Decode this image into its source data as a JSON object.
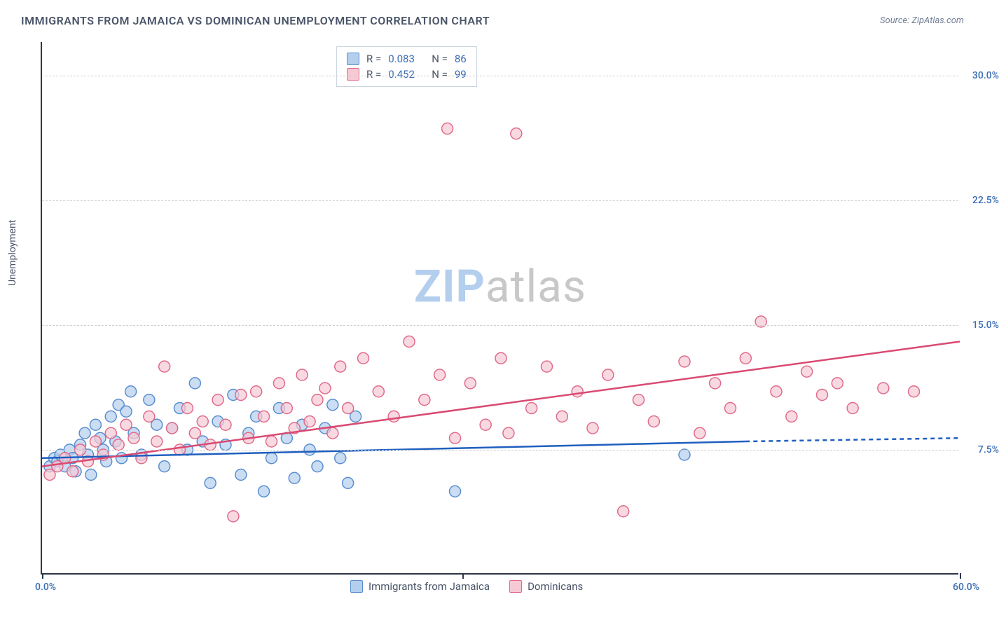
{
  "header": {
    "title": "IMMIGRANTS FROM JAMAICA VS DOMINICAN UNEMPLOYMENT CORRELATION CHART",
    "source": "Source: ZipAtlas.com"
  },
  "chart": {
    "type": "scatter",
    "ylabel": "Unemployment",
    "xlim": [
      0,
      60
    ],
    "ylim": [
      0,
      32
    ],
    "xticks": [
      {
        "value": 0,
        "label": "0.0%"
      },
      {
        "value": 60,
        "label": "60.0%"
      }
    ],
    "yticks": [
      {
        "value": 7.5,
        "label": "7.5%"
      },
      {
        "value": 15.0,
        "label": "15.0%"
      },
      {
        "value": 22.5,
        "label": "22.5%"
      },
      {
        "value": 30.0,
        "label": "30.0%"
      }
    ],
    "xtick_markers": [
      0,
      27.5,
      60
    ],
    "grid_color": "#d0d0d0",
    "background_color": "#ffffff",
    "axis_color": "#2d3748",
    "tick_label_color": "#3b6db5",
    "marker_radius": 8,
    "marker_stroke_width": 1.5,
    "trend_line_width": 2.5,
    "series": [
      {
        "name": "Immigrants from Jamaica",
        "fill": "#b4cfee",
        "stroke": "#5a8ed0",
        "line_color": "#1f5fbf",
        "r_value": "0.083",
        "n_value": "86",
        "trend": {
          "x1": 0,
          "y1": 7.0,
          "x2": 46,
          "y2": 8.0,
          "dashed_x2": 60,
          "dashed_y2": 8.2
        },
        "points": [
          [
            0.5,
            6.5
          ],
          [
            0.8,
            7.0
          ],
          [
            1.0,
            6.8
          ],
          [
            1.2,
            7.2
          ],
          [
            1.5,
            6.5
          ],
          [
            1.8,
            7.5
          ],
          [
            2.0,
            7.0
          ],
          [
            2.2,
            6.2
          ],
          [
            2.5,
            7.8
          ],
          [
            2.8,
            8.5
          ],
          [
            3.0,
            7.2
          ],
          [
            3.2,
            6.0
          ],
          [
            3.5,
            9.0
          ],
          [
            3.8,
            8.2
          ],
          [
            4.0,
            7.5
          ],
          [
            4.2,
            6.8
          ],
          [
            4.5,
            9.5
          ],
          [
            4.8,
            8.0
          ],
          [
            5.0,
            10.2
          ],
          [
            5.2,
            7.0
          ],
          [
            5.5,
            9.8
          ],
          [
            5.8,
            11.0
          ],
          [
            6.0,
            8.5
          ],
          [
            6.5,
            7.2
          ],
          [
            7.0,
            10.5
          ],
          [
            7.5,
            9.0
          ],
          [
            8.0,
            6.5
          ],
          [
            8.5,
            8.8
          ],
          [
            9.0,
            10.0
          ],
          [
            9.5,
            7.5
          ],
          [
            10.0,
            11.5
          ],
          [
            10.5,
            8.0
          ],
          [
            11.0,
            5.5
          ],
          [
            11.5,
            9.2
          ],
          [
            12.0,
            7.8
          ],
          [
            12.5,
            10.8
          ],
          [
            13.0,
            6.0
          ],
          [
            13.5,
            8.5
          ],
          [
            14.0,
            9.5
          ],
          [
            14.5,
            5.0
          ],
          [
            15.0,
            7.0
          ],
          [
            15.5,
            10.0
          ],
          [
            16.0,
            8.2
          ],
          [
            16.5,
            5.8
          ],
          [
            17.0,
            9.0
          ],
          [
            17.5,
            7.5
          ],
          [
            18.0,
            6.5
          ],
          [
            18.5,
            8.8
          ],
          [
            19.0,
            10.2
          ],
          [
            19.5,
            7.0
          ],
          [
            20.0,
            5.5
          ],
          [
            20.5,
            9.5
          ],
          [
            27.0,
            5.0
          ],
          [
            42.0,
            7.2
          ]
        ]
      },
      {
        "name": "Dominicans",
        "fill": "#f7c9d4",
        "stroke": "#e06a8a",
        "line_color": "#d94a72",
        "r_value": "0.452",
        "n_value": "99",
        "trend": {
          "x1": 0,
          "y1": 6.5,
          "x2": 60,
          "y2": 14.0
        },
        "points": [
          [
            0.5,
            6.0
          ],
          [
            1.0,
            6.5
          ],
          [
            1.5,
            7.0
          ],
          [
            2.0,
            6.2
          ],
          [
            2.5,
            7.5
          ],
          [
            3.0,
            6.8
          ],
          [
            3.5,
            8.0
          ],
          [
            4.0,
            7.2
          ],
          [
            4.5,
            8.5
          ],
          [
            5.0,
            7.8
          ],
          [
            5.5,
            9.0
          ],
          [
            6.0,
            8.2
          ],
          [
            6.5,
            7.0
          ],
          [
            7.0,
            9.5
          ],
          [
            7.5,
            8.0
          ],
          [
            8.0,
            12.5
          ],
          [
            8.5,
            8.8
          ],
          [
            9.0,
            7.5
          ],
          [
            9.5,
            10.0
          ],
          [
            10.0,
            8.5
          ],
          [
            10.5,
            9.2
          ],
          [
            11.0,
            7.8
          ],
          [
            11.5,
            10.5
          ],
          [
            12.0,
            9.0
          ],
          [
            12.5,
            3.5
          ],
          [
            13.0,
            10.8
          ],
          [
            13.5,
            8.2
          ],
          [
            14.0,
            11.0
          ],
          [
            14.5,
            9.5
          ],
          [
            15.0,
            8.0
          ],
          [
            15.5,
            11.5
          ],
          [
            16.0,
            10.0
          ],
          [
            16.5,
            8.8
          ],
          [
            17.0,
            12.0
          ],
          [
            17.5,
            9.2
          ],
          [
            18.0,
            10.5
          ],
          [
            18.5,
            11.2
          ],
          [
            19.0,
            8.5
          ],
          [
            19.5,
            12.5
          ],
          [
            20.0,
            10.0
          ],
          [
            21.0,
            13.0
          ],
          [
            22.0,
            11.0
          ],
          [
            23.0,
            9.5
          ],
          [
            24.0,
            14.0
          ],
          [
            25.0,
            10.5
          ],
          [
            26.0,
            12.0
          ],
          [
            26.5,
            26.8
          ],
          [
            27.0,
            8.2
          ],
          [
            28.0,
            11.5
          ],
          [
            29.0,
            9.0
          ],
          [
            30.0,
            13.0
          ],
          [
            30.5,
            8.5
          ],
          [
            31.0,
            26.5
          ],
          [
            32.0,
            10.0
          ],
          [
            33.0,
            12.5
          ],
          [
            34.0,
            9.5
          ],
          [
            35.0,
            11.0
          ],
          [
            36.0,
            8.8
          ],
          [
            37.0,
            12.0
          ],
          [
            38.0,
            3.8
          ],
          [
            39.0,
            10.5
          ],
          [
            40.0,
            9.2
          ],
          [
            42.0,
            12.8
          ],
          [
            43.0,
            8.5
          ],
          [
            44.0,
            11.5
          ],
          [
            45.0,
            10.0
          ],
          [
            46.0,
            13.0
          ],
          [
            47.0,
            15.2
          ],
          [
            48.0,
            11.0
          ],
          [
            49.0,
            9.5
          ],
          [
            50.0,
            12.2
          ],
          [
            51.0,
            10.8
          ],
          [
            52.0,
            11.5
          ],
          [
            53.0,
            10.0
          ],
          [
            55.0,
            11.2
          ],
          [
            57.0,
            11.0
          ]
        ]
      }
    ],
    "legend_top": {
      "r_label": "R =",
      "n_label": "N =",
      "text_color": "#4a5568",
      "value_color": "#3b6db5"
    },
    "watermark": {
      "text_zip": "ZIP",
      "text_atlas": "atlas",
      "color_zip": "#b4cfee",
      "color_atlas": "#c8c8c8"
    }
  }
}
